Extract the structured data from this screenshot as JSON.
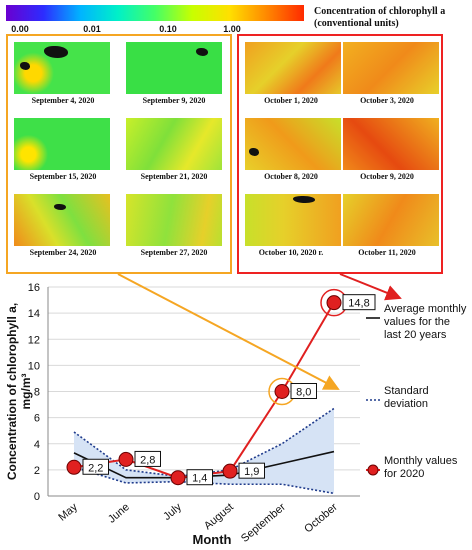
{
  "colorbar": {
    "title_line1": "Concentration of chlorophyll a",
    "title_line2": "(conventional units)",
    "ticks": [
      "0.00",
      "0.01",
      "0.10",
      "1.00"
    ],
    "colors": [
      "#6a00d0",
      "#2d2cff",
      "#00b4ff",
      "#00f0c8",
      "#44ff66",
      "#c8ff00",
      "#ffe000",
      "#ff8800",
      "#ff2a00"
    ]
  },
  "september_maps": [
    "September 4, 2020",
    "September 9, 2020",
    "September 15, 2020",
    "September 21, 2020",
    "September 24, 2020",
    "September 27, 2020"
  ],
  "october_maps": [
    "October 1, 2020",
    "October 3, 2020",
    "October 8, 2020",
    "October 9, 2020",
    "October 10, 2020 г.",
    "October 11, 2020"
  ],
  "chart_data": {
    "type": "line",
    "xlabel": "Month",
    "ylabel_line1": "Concentration of chlorophyll a,",
    "ylabel_line2": "mg/m³",
    "categories": [
      "May",
      "June",
      "July",
      "August",
      "September",
      "October"
    ],
    "ylim": [
      0,
      16
    ],
    "yticks": [
      "0",
      "2",
      "4",
      "6",
      "8",
      "10",
      "12",
      "14",
      "16"
    ],
    "grid": true,
    "legend_placement": "right",
    "series": [
      {
        "name": "Average monthly values for the last 20 years",
        "values": [
          3.3,
          1.4,
          1.4,
          1.6,
          2.5,
          3.4
        ],
        "color": "#111111",
        "style": "solid"
      },
      {
        "name": "Standard deviation",
        "upper": [
          4.9,
          2.0,
          1.5,
          2.0,
          4.0,
          6.7
        ],
        "lower": [
          2.2,
          1.0,
          1.1,
          0.9,
          0.9,
          0.2
        ],
        "color": "#1f3b8c",
        "fill": "#d6e3f5",
        "style": "dotted"
      },
      {
        "name": "Monthly values for 2020",
        "values": [
          2.2,
          2.8,
          1.4,
          1.9,
          8.0,
          14.8
        ],
        "labels": [
          "2,2",
          "2,8",
          "1,4",
          "1,9",
          "8,0",
          "14,8"
        ],
        "color": "#e02020",
        "marker": "#e02020"
      }
    ]
  }
}
